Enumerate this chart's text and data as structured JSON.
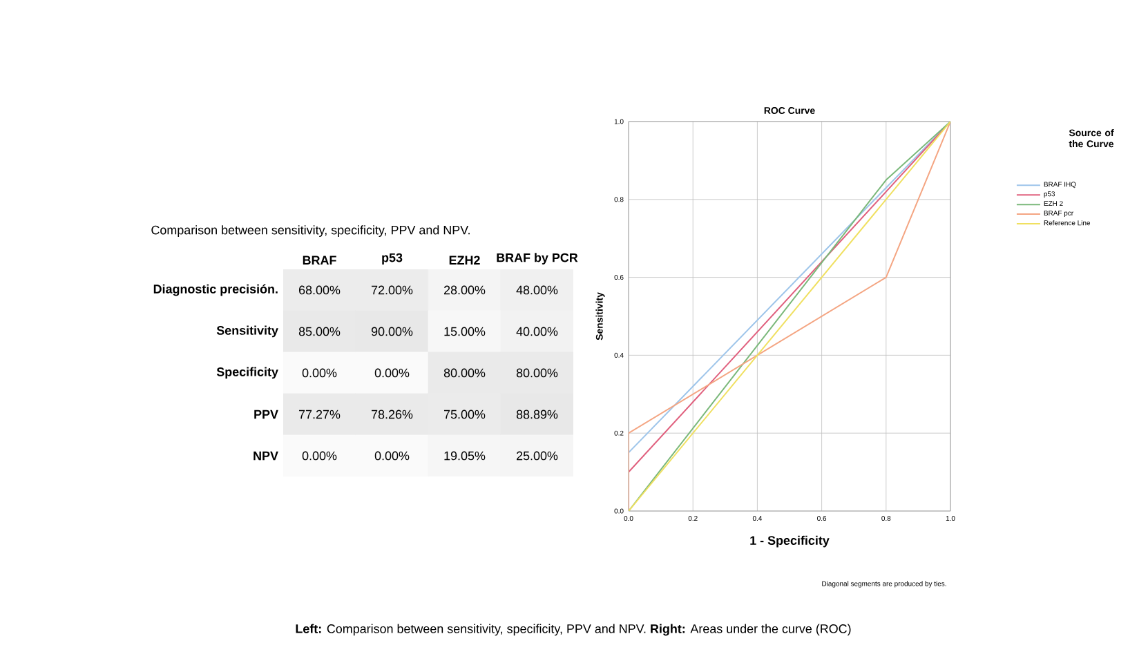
{
  "chart_data": [
    {
      "type": "heatmap",
      "title": "Comparison between sensitivity, specificity, PPV and NPV.",
      "categories": [
        "BRAF",
        "p53",
        "EZH2",
        "BRAF by PCR"
      ],
      "y_categories": [
        "Diagnostic precisión.",
        "Sensitivity",
        "Specificity",
        "PPV",
        "NPV"
      ],
      "cells": [
        [
          68.0,
          72.0,
          28.0,
          48.0
        ],
        [
          85.0,
          90.0,
          15.0,
          40.0
        ],
        [
          0.0,
          0.0,
          80.0,
          80.0
        ],
        [
          77.27,
          78.26,
          75.0,
          88.89
        ],
        [
          0.0,
          0.0,
          19.05,
          25.0
        ]
      ],
      "cell_labels": [
        [
          "68.00%",
          "72.00%",
          "28.00%",
          "48.00%"
        ],
        [
          "85.00%",
          "90.00%",
          "15.00%",
          "40.00%"
        ],
        [
          "0.00%",
          "0.00%",
          "80.00%",
          "80.00%"
        ],
        [
          "77.27%",
          "78.26%",
          "75.00%",
          "88.89%"
        ],
        [
          "0.00%",
          "0.00%",
          "19.05%",
          "25.00%"
        ]
      ]
    },
    {
      "type": "line",
      "title": "ROC Curve",
      "xlabel": "1 - Specificity",
      "ylabel": "Sensitivity",
      "legend_title": "Source of the Curve",
      "series": [
        {
          "name": "BRAF IHQ",
          "color": "#9ec5ea",
          "x": [
            0,
            0,
            1
          ],
          "values": [
            0,
            0.15,
            1
          ]
        },
        {
          "name": "p53",
          "color": "#e0607e",
          "x": [
            0,
            0,
            1
          ],
          "values": [
            0,
            0.1,
            1
          ]
        },
        {
          "name": "EZH 2",
          "color": "#7ab87a",
          "x": [
            0,
            0.8,
            1
          ],
          "values": [
            0,
            0.85,
            1
          ]
        },
        {
          "name": "BRAF pcr",
          "color": "#f4a582",
          "x": [
            0,
            0,
            0.8,
            1
          ],
          "values": [
            0,
            0.2,
            0.6,
            1
          ]
        },
        {
          "name": "Reference Line",
          "color": "#f0e060",
          "x": [
            0,
            1
          ],
          "values": [
            0,
            1
          ]
        }
      ],
      "xlim": [
        0,
        1
      ],
      "ylim": [
        0,
        1
      ],
      "xticks": [
        {
          "value": 0,
          "label": "0.0"
        },
        {
          "value": 0.2,
          "label": "0.2"
        },
        {
          "value": 0.4,
          "label": "0.4"
        },
        {
          "value": 0.6,
          "label": "0.6"
        },
        {
          "value": 0.8,
          "label": "0.8"
        },
        {
          "value": 1,
          "label": "1.0"
        }
      ],
      "yticks": [
        {
          "value": 0,
          "label": "0.0"
        },
        {
          "value": 0.2,
          "label": "0.2"
        },
        {
          "value": 0.4,
          "label": "0.4"
        },
        {
          "value": 0.6,
          "label": "0.6"
        },
        {
          "value": 0.8,
          "label": "0.8"
        },
        {
          "value": 1,
          "label": "1.0"
        }
      ],
      "grid": true,
      "legend": "right",
      "annotations": [
        "Diagonal segments are produced by ties.",
        "**Left:**  Comparison between sensitivity, specificity, PPV and NPV. **Right:**  Areas under the curve (ROC)"
      ]
    }
  ]
}
